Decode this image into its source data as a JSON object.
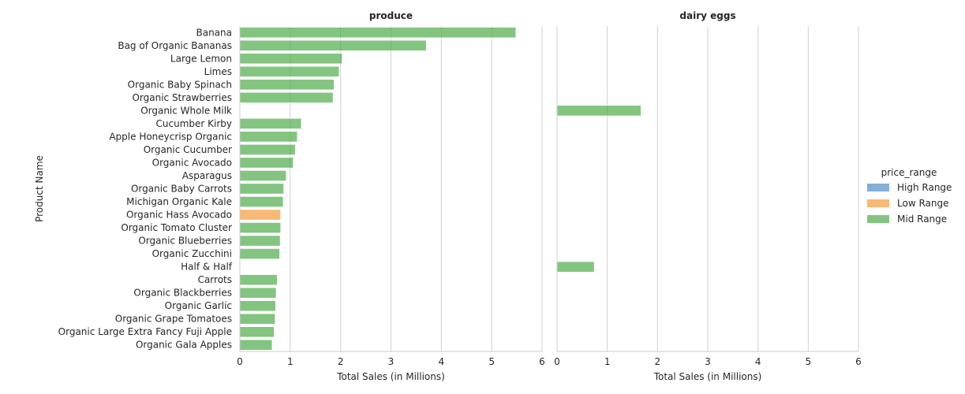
{
  "chart_data": {
    "type": "bar",
    "orientation": "horizontal",
    "facet_by": "department",
    "facets": [
      "produce",
      "dairy eggs"
    ],
    "categories": [
      "Banana",
      "Bag of Organic Bananas",
      "Large Lemon",
      "Limes",
      "Organic Baby Spinach",
      "Organic Strawberries",
      "Organic Whole Milk",
      "Cucumber Kirby",
      "Apple Honeycrisp Organic",
      "Organic Cucumber",
      "Organic Avocado",
      "Asparagus",
      "Organic Baby Carrots",
      "Michigan Organic Kale",
      "Organic Hass Avocado",
      "Organic Tomato Cluster",
      "Organic Blueberries",
      "Organic Zucchini",
      "Half & Half",
      "Carrots",
      "Organic Blackberries",
      "Organic Garlic",
      "Organic Grape Tomatoes",
      "Organic Large Extra Fancy Fuji Apple",
      "Organic Gala Apples"
    ],
    "bars": [
      {
        "facet": "produce",
        "category": "Banana",
        "value": 5.48,
        "price_range": "Mid Range"
      },
      {
        "facet": "produce",
        "category": "Bag of Organic Bananas",
        "value": 3.7,
        "price_range": "Mid Range"
      },
      {
        "facet": "produce",
        "category": "Large Lemon",
        "value": 2.03,
        "price_range": "Mid Range"
      },
      {
        "facet": "produce",
        "category": "Limes",
        "value": 1.97,
        "price_range": "Mid Range"
      },
      {
        "facet": "produce",
        "category": "Organic Baby Spinach",
        "value": 1.87,
        "price_range": "Mid Range"
      },
      {
        "facet": "produce",
        "category": "Organic Strawberries",
        "value": 1.85,
        "price_range": "Mid Range"
      },
      {
        "facet": "dairy eggs",
        "category": "Organic Whole Milk",
        "value": 1.67,
        "price_range": "Mid Range"
      },
      {
        "facet": "produce",
        "category": "Cucumber Kirby",
        "value": 1.22,
        "price_range": "Mid Range"
      },
      {
        "facet": "produce",
        "category": "Apple Honeycrisp Organic",
        "value": 1.14,
        "price_range": "Mid Range"
      },
      {
        "facet": "produce",
        "category": "Organic Cucumber",
        "value": 1.1,
        "price_range": "Mid Range"
      },
      {
        "facet": "produce",
        "category": "Organic Avocado",
        "value": 1.06,
        "price_range": "Mid Range"
      },
      {
        "facet": "produce",
        "category": "Asparagus",
        "value": 0.92,
        "price_range": "Mid Range"
      },
      {
        "facet": "produce",
        "category": "Organic Baby Carrots",
        "value": 0.87,
        "price_range": "Mid Range"
      },
      {
        "facet": "produce",
        "category": "Michigan Organic Kale",
        "value": 0.86,
        "price_range": "Mid Range"
      },
      {
        "facet": "produce",
        "category": "Organic Hass Avocado",
        "value": 0.81,
        "price_range": "Low Range"
      },
      {
        "facet": "produce",
        "category": "Organic Tomato Cluster",
        "value": 0.81,
        "price_range": "Mid Range"
      },
      {
        "facet": "produce",
        "category": "Organic Blueberries",
        "value": 0.8,
        "price_range": "Mid Range"
      },
      {
        "facet": "produce",
        "category": "Organic Zucchini",
        "value": 0.79,
        "price_range": "Mid Range"
      },
      {
        "facet": "dairy eggs",
        "category": "Half & Half",
        "value": 0.74,
        "price_range": "Mid Range"
      },
      {
        "facet": "produce",
        "category": "Carrots",
        "value": 0.74,
        "price_range": "Mid Range"
      },
      {
        "facet": "produce",
        "category": "Organic Blackberries",
        "value": 0.72,
        "price_range": "Mid Range"
      },
      {
        "facet": "produce",
        "category": "Organic Garlic",
        "value": 0.71,
        "price_range": "Mid Range"
      },
      {
        "facet": "produce",
        "category": "Organic Grape Tomatoes",
        "value": 0.7,
        "price_range": "Mid Range"
      },
      {
        "facet": "produce",
        "category": "Organic Large Extra Fancy Fuji Apple",
        "value": 0.68,
        "price_range": "Mid Range"
      },
      {
        "facet": "produce",
        "category": "Organic Gala Apples",
        "value": 0.64,
        "price_range": "Mid Range"
      }
    ],
    "xlabel": "Total Sales (in Millions)",
    "ylabel": "Product Name",
    "xlim": [
      0,
      6
    ],
    "xticks": [
      "0",
      "1",
      "2",
      "3",
      "4",
      "5",
      "6"
    ],
    "grid": "vertical",
    "legend": {
      "title": "price_range",
      "placement": "right",
      "entries": [
        {
          "label": "High Range",
          "color": "#4c8dc6"
        },
        {
          "label": "Low Range",
          "color": "#f39b3b"
        },
        {
          "label": "Mid Range",
          "color": "#4eab4c"
        }
      ]
    }
  }
}
